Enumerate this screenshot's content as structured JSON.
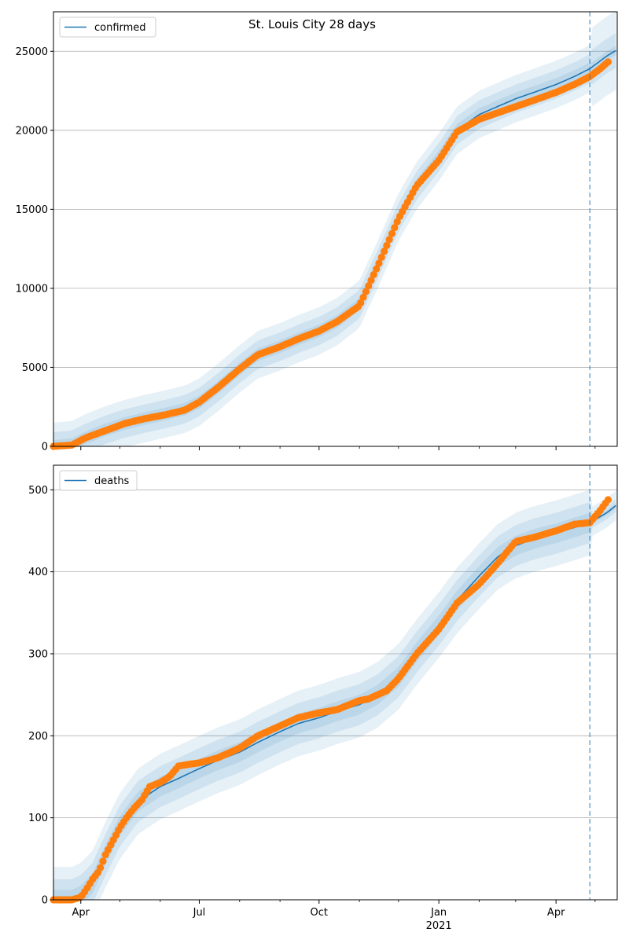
{
  "figure": {
    "title": "St. Louis City 28 days"
  },
  "colors": {
    "model": "#1f77b4",
    "observed": "#ff7f0e",
    "grid": "#b0b0b0",
    "band": "#1f77b4"
  },
  "x_axis": {
    "start_date": "2020-03-11",
    "end_date": "2021-05-18",
    "forecast_start": "2021-04-27",
    "major_ticks": [
      {
        "date": "2020-04-01",
        "label": "Apr"
      },
      {
        "date": "2020-07-01",
        "label": "Jul"
      },
      {
        "date": "2020-10-01",
        "label": "Oct"
      },
      {
        "date": "2021-01-01",
        "label": "Jan",
        "sublabel": "2021"
      },
      {
        "date": "2021-04-01",
        "label": "Apr"
      }
    ],
    "minor_ticks": [
      "2020-05-01",
      "2020-06-01",
      "2020-08-01",
      "2020-09-01",
      "2020-11-01",
      "2020-12-01",
      "2021-02-01",
      "2021-03-01",
      "2021-05-01"
    ]
  },
  "chart_data": [
    {
      "type": "line",
      "name": "confirmed",
      "legend": "confirmed",
      "legend_position": "top-left",
      "grid": "horizontal",
      "ylim": [
        0,
        27500
      ],
      "yticks": [
        0,
        5000,
        10000,
        15000,
        20000,
        25000
      ],
      "model_line": {
        "x": [
          "2020-03-11",
          "2020-03-25",
          "2020-04-05",
          "2020-04-20",
          "2020-05-05",
          "2020-05-20",
          "2020-06-05",
          "2020-06-20",
          "2020-07-01",
          "2020-07-15",
          "2020-08-01",
          "2020-08-15",
          "2020-09-01",
          "2020-09-15",
          "2020-10-01",
          "2020-10-15",
          "2020-11-01",
          "2020-11-15",
          "2020-12-01",
          "2020-12-15",
          "2021-01-01",
          "2021-01-15",
          "2021-02-01",
          "2021-02-15",
          "2021-03-01",
          "2021-03-15",
          "2021-04-01",
          "2021-04-15",
          "2021-04-27",
          "2021-05-10",
          "2021-05-18"
        ],
        "y": [
          0,
          100,
          550,
          1050,
          1450,
          1750,
          2050,
          2350,
          2800,
          3700,
          4900,
          5800,
          6300,
          6800,
          7300,
          7900,
          9000,
          11500,
          14500,
          16500,
          18300,
          20000,
          21000,
          21500,
          22000,
          22400,
          22900,
          23400,
          23900,
          24700,
          25100
        ]
      },
      "bands": {
        "offsets": [
          400,
          900,
          1500
        ],
        "forecast_offsets": [
          300,
          1100,
          2500
        ]
      },
      "observed": {
        "x": [
          "2020-03-11",
          "2020-03-25",
          "2020-04-05",
          "2020-04-20",
          "2020-05-05",
          "2020-05-20",
          "2020-06-05",
          "2020-06-20",
          "2020-07-01",
          "2020-07-15",
          "2020-08-01",
          "2020-08-15",
          "2020-09-01",
          "2020-09-15",
          "2020-10-01",
          "2020-10-15",
          "2020-11-01",
          "2020-11-15",
          "2020-12-01",
          "2020-12-15",
          "2021-01-01",
          "2021-01-15",
          "2021-02-01",
          "2021-02-15",
          "2021-03-01",
          "2021-03-15",
          "2021-04-01",
          "2021-04-15",
          "2021-04-27",
          "2021-05-05",
          "2021-05-12"
        ],
        "y": [
          0,
          80,
          550,
          1000,
          1450,
          1750,
          2000,
          2300,
          2800,
          3700,
          4900,
          5800,
          6300,
          6800,
          7300,
          7900,
          8900,
          11400,
          14400,
          16500,
          18100,
          19900,
          20700,
          21100,
          21500,
          21900,
          22400,
          22900,
          23400,
          23900,
          24400
        ]
      }
    },
    {
      "type": "line",
      "name": "deaths",
      "legend": "deaths",
      "legend_position": "top-left",
      "grid": "horizontal",
      "ylim": [
        0,
        530
      ],
      "yticks": [
        0,
        100,
        200,
        300,
        400,
        500
      ],
      "model_line": {
        "x": [
          "2020-03-11",
          "2020-03-25",
          "2020-04-01",
          "2020-04-10",
          "2020-04-20",
          "2020-05-01",
          "2020-05-15",
          "2020-06-01",
          "2020-06-15",
          "2020-07-01",
          "2020-07-15",
          "2020-08-01",
          "2020-08-15",
          "2020-09-01",
          "2020-09-15",
          "2020-10-01",
          "2020-10-15",
          "2020-11-01",
          "2020-11-15",
          "2020-12-01",
          "2020-12-15",
          "2021-01-01",
          "2021-01-15",
          "2021-02-01",
          "2021-02-15",
          "2021-03-01",
          "2021-03-15",
          "2021-04-01",
          "2021-04-15",
          "2021-04-27",
          "2021-05-10",
          "2021-05-18"
        ],
        "y": [
          0,
          0,
          5,
          20,
          55,
          90,
          120,
          138,
          148,
          160,
          170,
          180,
          192,
          205,
          215,
          222,
          230,
          238,
          250,
          272,
          302,
          335,
          365,
          395,
          418,
          432,
          440,
          447,
          454,
          460,
          472,
          482
        ]
      },
      "bands": {
        "offsets": [
          12,
          25,
          40
        ],
        "forecast_offsets": [
          3,
          8,
          18
        ]
      },
      "observed": {
        "x": [
          "2020-03-11",
          "2020-03-25",
          "2020-04-01",
          "2020-04-05",
          "2020-04-10",
          "2020-04-15",
          "2020-04-20",
          "2020-04-25",
          "2020-05-01",
          "2020-05-06",
          "2020-05-12",
          "2020-05-18",
          "2020-05-24",
          "2020-06-01",
          "2020-06-08",
          "2020-06-15",
          "2020-06-22",
          "2020-07-01",
          "2020-07-15",
          "2020-08-01",
          "2020-08-15",
          "2020-09-01",
          "2020-09-15",
          "2020-10-01",
          "2020-10-15",
          "2020-11-01",
          "2020-11-08",
          "2020-11-15",
          "2020-11-22",
          "2020-12-01",
          "2020-12-15",
          "2021-01-01",
          "2021-01-15",
          "2021-02-01",
          "2021-02-15",
          "2021-03-01",
          "2021-03-15",
          "2021-04-01",
          "2021-04-15",
          "2021-04-27",
          "2021-05-05",
          "2021-05-12"
        ],
        "y": [
          0,
          0,
          3,
          12,
          25,
          35,
          55,
          70,
          88,
          100,
          112,
          122,
          138,
          143,
          150,
          163,
          165,
          167,
          173,
          185,
          200,
          212,
          222,
          228,
          232,
          243,
          245,
          250,
          255,
          270,
          300,
          330,
          362,
          385,
          410,
          437,
          442,
          450,
          458,
          460,
          475,
          490
        ]
      }
    }
  ]
}
